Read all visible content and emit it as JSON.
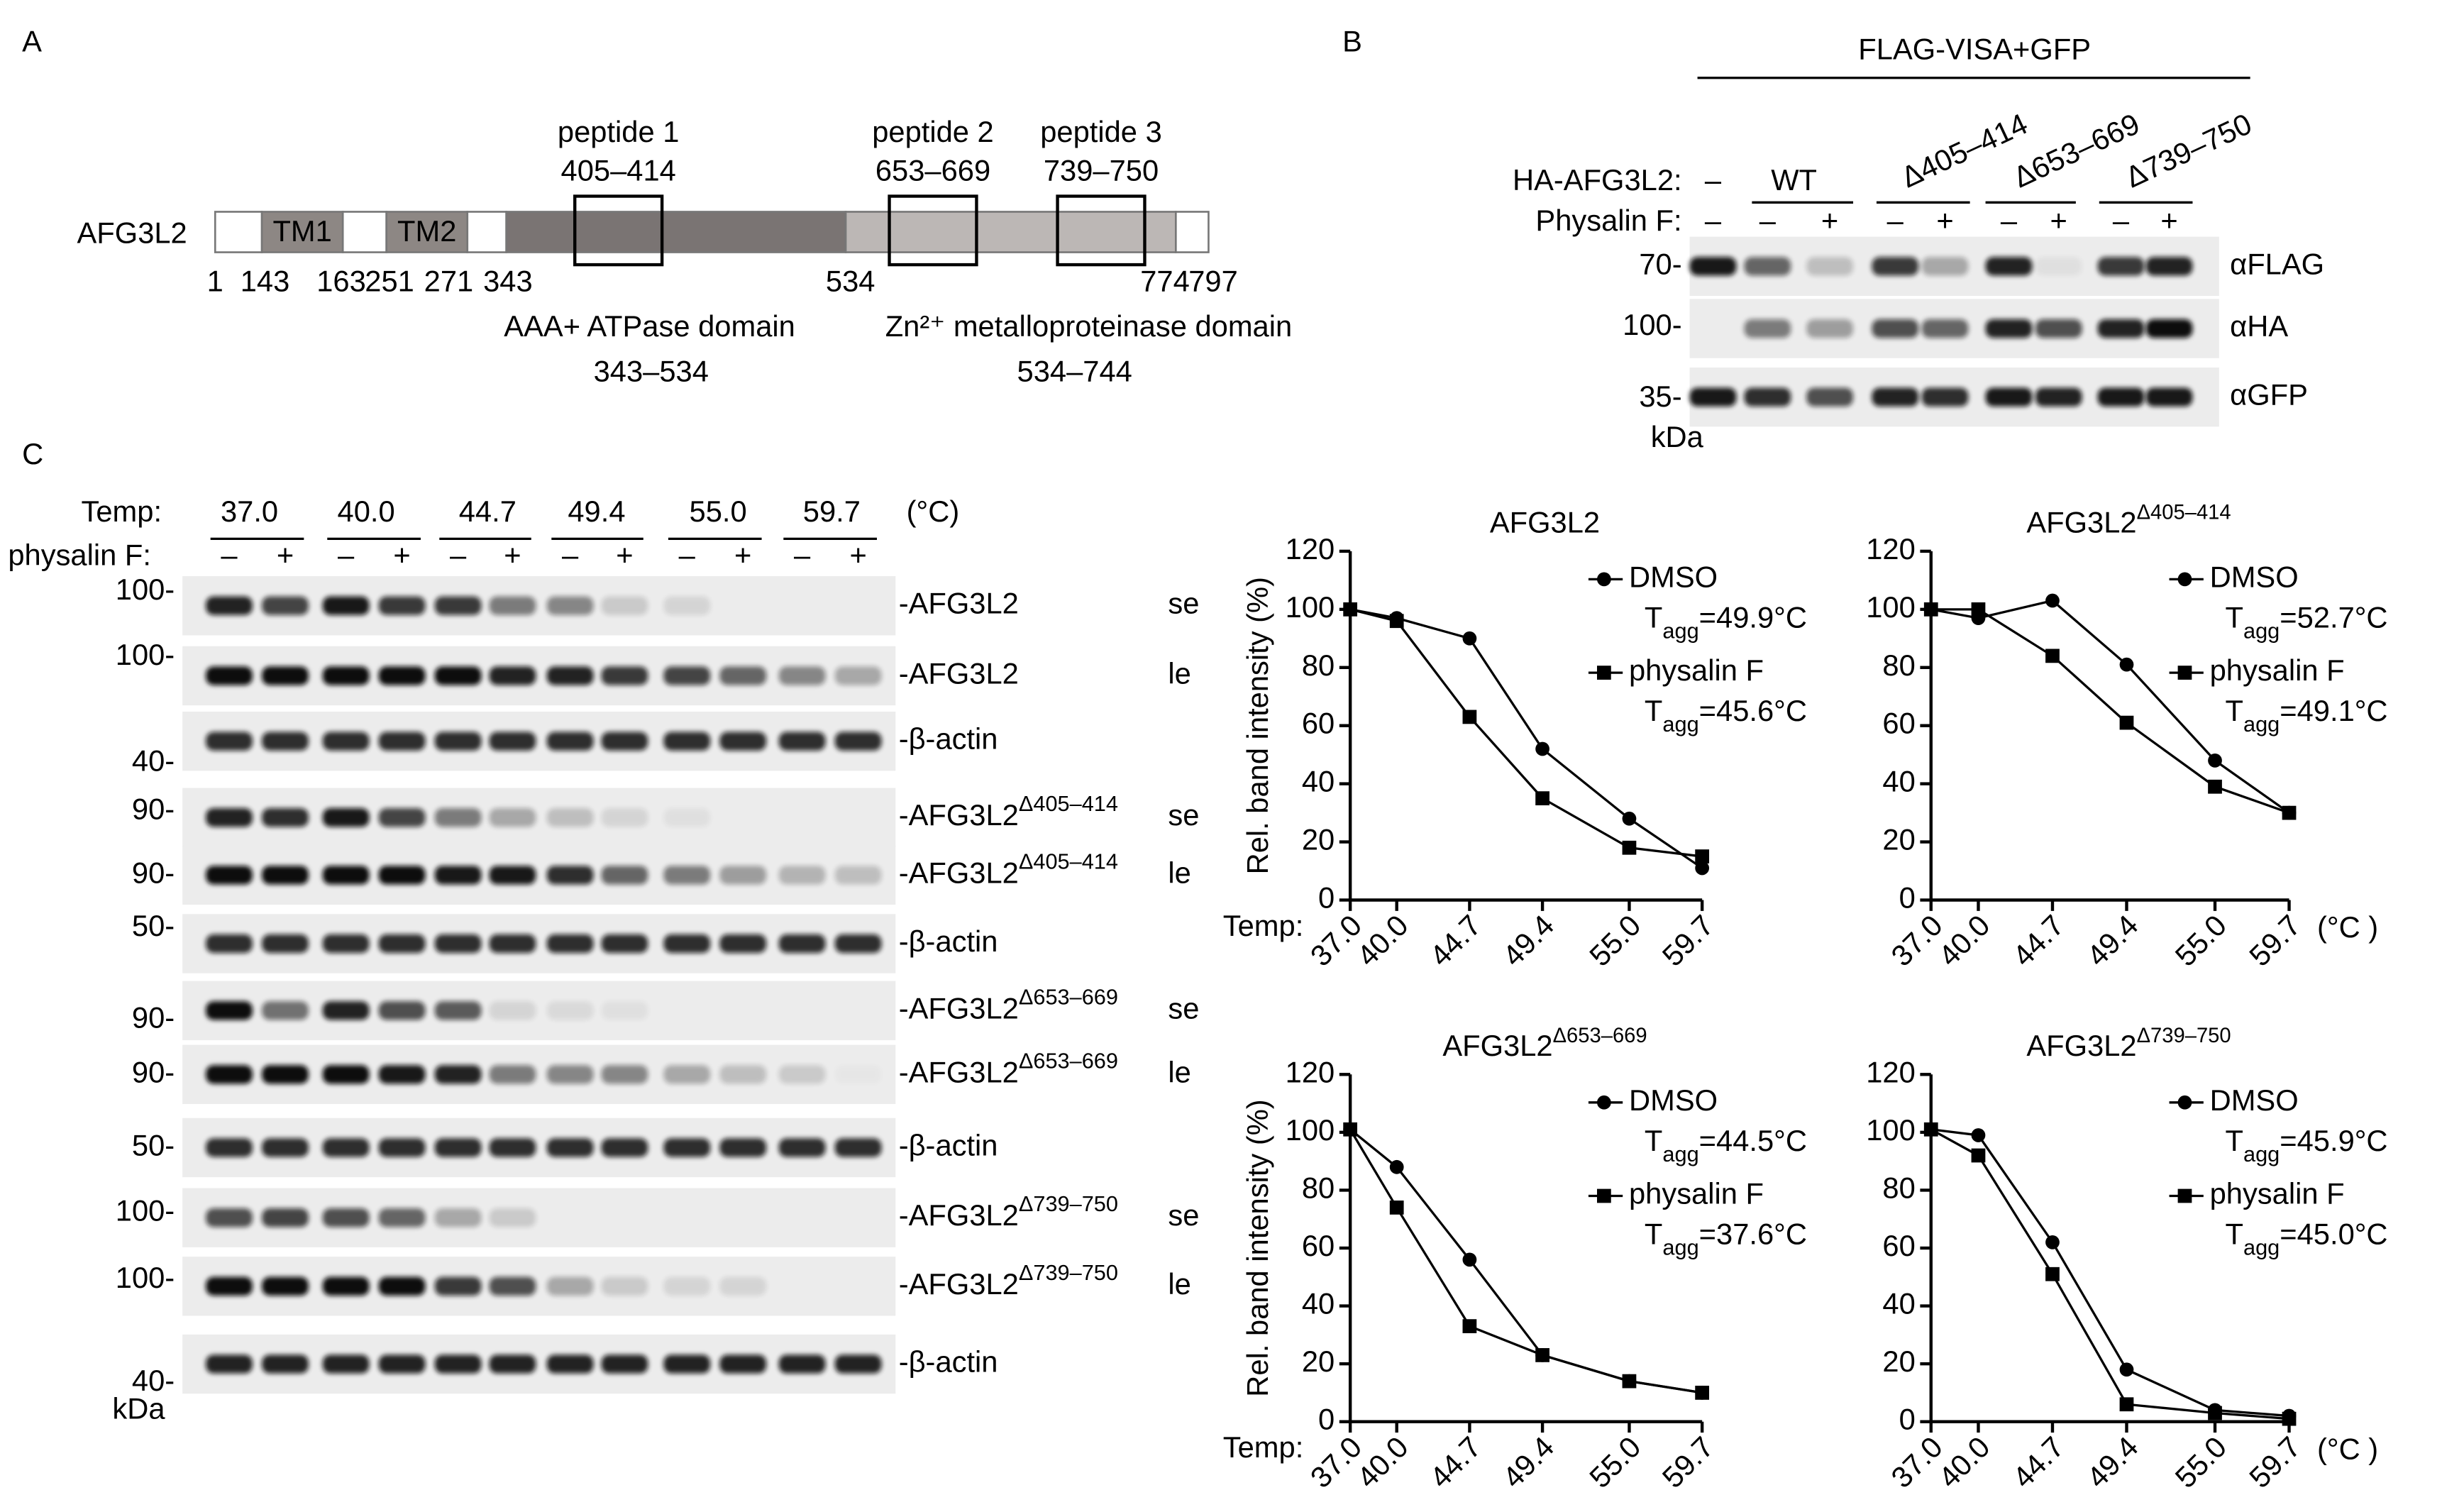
{
  "panel_a": {
    "label": "A",
    "protein": "AFG3L2",
    "tm": [
      "TM1",
      "TM2"
    ],
    "peptides": [
      {
        "name": "peptide 1",
        "range": "405–414"
      },
      {
        "name": "peptide 2",
        "range": "653–669"
      },
      {
        "name": "peptide 3",
        "range": "739–750"
      }
    ],
    "positions": [
      1,
      143,
      163,
      251,
      271,
      343,
      534,
      774,
      797
    ],
    "domains": [
      {
        "name": "AAA+ ATPase domain",
        "range": "343–534"
      },
      {
        "name": "Zn²⁺ metalloproteinase domain",
        "range": "534–744"
      }
    ]
  },
  "panel_b": {
    "label": "B",
    "header": "FLAG-VISA+GFP",
    "row_labels": [
      "HA-AFG3L2:",
      "Physalin F:"
    ],
    "constructs": [
      "–",
      "WT",
      "Δ405–414",
      "Δ653–669",
      "Δ739–750"
    ],
    "treatments": [
      "–",
      "–",
      "+",
      "–",
      "+",
      "–",
      "+",
      "–",
      "+"
    ],
    "markers": [
      "70-",
      "100-",
      "35-"
    ],
    "unit": "kDa",
    "antibodies": [
      "αFLAG",
      "αHA",
      "αGFP"
    ]
  },
  "panel_c": {
    "label": "C",
    "temp_label": "Temp:",
    "temps": [
      "37.0",
      "40.0",
      "44.7",
      "49.4",
      "55.0",
      "59.7"
    ],
    "temp_unit": "(°C)",
    "treatment_label": "physalin F:",
    "treatments": [
      "–",
      "+"
    ],
    "unit": "kDa",
    "rows": [
      {
        "marker": "100-",
        "label": "-AFG3L2",
        "exposure": "se"
      },
      {
        "marker": "100-",
        "label": "-AFG3L2",
        "exposure": "le"
      },
      {
        "marker": "40-",
        "label": "-β-actin"
      },
      {
        "marker": "90-",
        "label": "-AFG3L2",
        "sup": "Δ405–414",
        "exposure": "se"
      },
      {
        "marker": "90-",
        "label": "-AFG3L2",
        "sup": "Δ405–414",
        "exposure": "le"
      },
      {
        "marker": "50-",
        "label": "-β-actin"
      },
      {
        "marker": "90-",
        "label": "-AFG3L2",
        "sup": "Δ653–669",
        "exposure": "se"
      },
      {
        "marker": "90-",
        "label": "-AFG3L2",
        "sup": "Δ653–669",
        "exposure": "le"
      },
      {
        "marker": "50-",
        "label": "-β-actin"
      },
      {
        "marker": "100-",
        "label": "-AFG3L2",
        "sup": "Δ739–750",
        "exposure": "se"
      },
      {
        "marker": "100-",
        "label": "-AFG3L2",
        "sup": "Δ739–750",
        "exposure": "le"
      },
      {
        "marker": "40-",
        "label": "-β-actin"
      }
    ]
  },
  "chart_data": [
    {
      "type": "line",
      "title": "AFG3L2",
      "ylabel": "Rel. band intensity (%)",
      "xlabel": "Temp:",
      "x": [
        37,
        40,
        44.7,
        49.4,
        55,
        59.7
      ],
      "xlim": [
        37,
        59.7
      ],
      "xticks": [
        {
          "value": 37,
          "label": "37.0"
        },
        {
          "value": 40,
          "label": "40.0"
        },
        {
          "value": 44.7,
          "label": "44.7"
        },
        {
          "value": 49.4,
          "label": "49.4"
        },
        {
          "value": 55,
          "label": "55.0"
        },
        {
          "value": 59.7,
          "label": "59.7"
        }
      ],
      "ylim": [
        0,
        120
      ],
      "yticks": [
        0,
        20,
        40,
        60,
        80,
        100,
        120
      ],
      "series": [
        {
          "name": "DMSO",
          "color": "#000000",
          "marker": "circle",
          "annotation": [
            "T",
            "agg",
            "=49.9°C"
          ],
          "values": [
            100,
            97,
            90,
            52,
            28,
            11
          ]
        },
        {
          "name": "physalin F",
          "color": "#000000",
          "marker": "square",
          "annotation": [
            "T",
            "agg",
            "=45.6°C"
          ],
          "values": [
            100,
            96,
            63,
            35,
            18,
            15
          ]
        }
      ]
    },
    {
      "type": "line",
      "title": "AFG3L2",
      "title_sup": "Δ405–414",
      "x_unit": "(°C )",
      "x": [
        37,
        40,
        44.7,
        49.4,
        55,
        59.7
      ],
      "xlim": [
        37,
        59.7
      ],
      "xticks": [
        {
          "value": 37,
          "label": "37.0"
        },
        {
          "value": 40,
          "label": "40.0"
        },
        {
          "value": 44.7,
          "label": "44.7"
        },
        {
          "value": 49.4,
          "label": "49.4"
        },
        {
          "value": 55,
          "label": "55.0"
        },
        {
          "value": 59.7,
          "label": "59.7"
        }
      ],
      "ylim": [
        0,
        120
      ],
      "yticks": [
        0,
        20,
        40,
        60,
        80,
        100,
        120
      ],
      "series": [
        {
          "name": "DMSO",
          "color": "#000000",
          "marker": "circle",
          "annotation": [
            "T",
            "agg",
            "=52.7°C"
          ],
          "values": [
            100,
            97,
            103,
            81,
            48,
            30
          ]
        },
        {
          "name": "physalin F",
          "color": "#000000",
          "marker": "square",
          "annotation": [
            "T",
            "agg",
            "=49.1°C"
          ],
          "values": [
            100,
            100,
            84,
            61,
            39,
            30
          ]
        }
      ]
    },
    {
      "type": "line",
      "title": "AFG3L2",
      "title_sup": "Δ653–669",
      "ylabel": "Rel. band intensity (%)",
      "xlabel": "Temp:",
      "x": [
        37,
        40,
        44.7,
        49.4,
        55,
        59.7
      ],
      "xlim": [
        37,
        59.7
      ],
      "xticks": [
        {
          "value": 37,
          "label": "37.0"
        },
        {
          "value": 40,
          "label": "40.0"
        },
        {
          "value": 44.7,
          "label": "44.7"
        },
        {
          "value": 49.4,
          "label": "49.4"
        },
        {
          "value": 55,
          "label": "55.0"
        },
        {
          "value": 59.7,
          "label": "59.7"
        }
      ],
      "ylim": [
        0,
        120
      ],
      "yticks": [
        0,
        20,
        40,
        60,
        80,
        100,
        120
      ],
      "series": [
        {
          "name": "DMSO",
          "color": "#000000",
          "marker": "circle",
          "annotation": [
            "T",
            "agg",
            "=44.5°C"
          ],
          "values": [
            101,
            88,
            56,
            23,
            14,
            10
          ]
        },
        {
          "name": "physalin F",
          "color": "#000000",
          "marker": "square",
          "annotation": [
            "T",
            "agg",
            "=37.6°C"
          ],
          "values": [
            101,
            74,
            33,
            23,
            14,
            10
          ]
        }
      ]
    },
    {
      "type": "line",
      "title": "AFG3L2",
      "title_sup": "Δ739–750",
      "x_unit": "(°C )",
      "x": [
        37,
        40,
        44.7,
        49.4,
        55,
        59.7
      ],
      "xlim": [
        37,
        59.7
      ],
      "xticks": [
        {
          "value": 37,
          "label": "37.0"
        },
        {
          "value": 40,
          "label": "40.0"
        },
        {
          "value": 44.7,
          "label": "44.7"
        },
        {
          "value": 49.4,
          "label": "49.4"
        },
        {
          "value": 55,
          "label": "55.0"
        },
        {
          "value": 59.7,
          "label": "59.7"
        }
      ],
      "ylim": [
        0,
        120
      ],
      "yticks": [
        0,
        20,
        40,
        60,
        80,
        100,
        120
      ],
      "series": [
        {
          "name": "DMSO",
          "color": "#000000",
          "marker": "circle",
          "annotation": [
            "T",
            "agg",
            "=45.9°C"
          ],
          "values": [
            101,
            99,
            62,
            18,
            4,
            2
          ]
        },
        {
          "name": "physalin F",
          "color": "#000000",
          "marker": "square",
          "annotation": [
            "T",
            "agg",
            "=45.0°C"
          ],
          "values": [
            101,
            92,
            51,
            6,
            3,
            1
          ]
        }
      ]
    }
  ]
}
